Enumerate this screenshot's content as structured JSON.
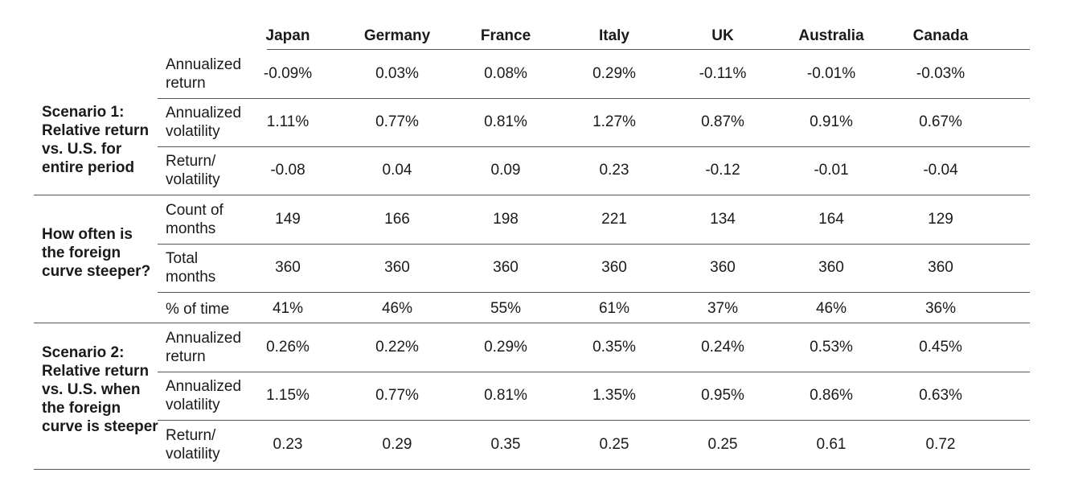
{
  "columns": [
    "Japan",
    "Germany",
    "France",
    "Italy",
    "UK",
    "Australia",
    "Canada"
  ],
  "groups": [
    {
      "label": "Scenario 1:\nRelative return vs. U.S. for entire period",
      "rows": [
        {
          "label": "Annualized\nreturn",
          "values": [
            "-0.09%",
            "0.03%",
            "0.08%",
            "0.29%",
            "-0.11%",
            "-0.01%",
            "-0.03%"
          ]
        },
        {
          "label": "Annualized\nvolatility",
          "values": [
            "1.11%",
            "0.77%",
            "0.81%",
            "1.27%",
            "0.87%",
            "0.91%",
            "0.67%"
          ]
        },
        {
          "label": "Return/\nvolatility",
          "values": [
            "-0.08",
            "0.04",
            "0.09",
            "0.23",
            "-0.12",
            "-0.01",
            "-0.04"
          ]
        }
      ]
    },
    {
      "label": "How often is the foreign curve steeper?",
      "rows": [
        {
          "label": "Count of\nmonths",
          "values": [
            "149",
            "166",
            "198",
            "221",
            "134",
            "164",
            "129"
          ]
        },
        {
          "label": "Total\nmonths",
          "values": [
            "360",
            "360",
            "360",
            "360",
            "360",
            "360",
            "360"
          ]
        },
        {
          "label": "% of time",
          "values": [
            "41%",
            "46%",
            "55%",
            "61%",
            "37%",
            "46%",
            "36%"
          ]
        }
      ]
    },
    {
      "label": "Scenario 2:\nRelative return vs. U.S. when the foreign curve is steeper",
      "rows": [
        {
          "label": "Annualized\nreturn",
          "values": [
            "0.26%",
            "0.22%",
            "0.29%",
            "0.35%",
            "0.24%",
            "0.53%",
            "0.45%"
          ]
        },
        {
          "label": "Annualized\nvolatility",
          "values": [
            "1.15%",
            "0.77%",
            "0.81%",
            "1.35%",
            "0.95%",
            "0.86%",
            "0.63%"
          ]
        },
        {
          "label": "Return/\nvolatility",
          "values": [
            "0.23",
            "0.29",
            "0.35",
            "0.25",
            "0.25",
            "0.61",
            "0.72"
          ]
        }
      ]
    }
  ]
}
